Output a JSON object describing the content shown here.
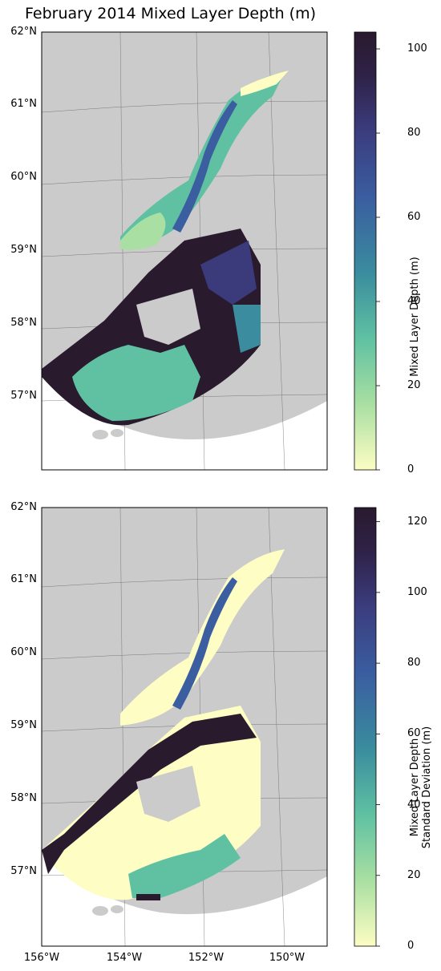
{
  "figure": {
    "title": "February 2014 Mixed Layer Depth (m)"
  },
  "lat_labels": [
    "62°N",
    "61°N",
    "60°N",
    "59°N",
    "58°N",
    "57°N"
  ],
  "lon_labels": [
    "156°W",
    "154°W",
    "152°W",
    "150°W"
  ],
  "panels": [
    {
      "colorbar": {
        "label_lines": [
          "Mixed Layer Depth (m)"
        ],
        "range": [
          0,
          104
        ],
        "ticks": [
          "0",
          "20",
          "40",
          "60",
          "80",
          "100"
        ],
        "tick_values": [
          0,
          20,
          40,
          60,
          80,
          100
        ]
      }
    },
    {
      "colorbar": {
        "label_lines": [
          "Mixed Layer Depth",
          "Standard Deviation (m)"
        ],
        "range": [
          0,
          124
        ],
        "ticks": [
          "0",
          "20",
          "40",
          "60",
          "80",
          "100",
          "120"
        ],
        "tick_values": [
          0,
          20,
          40,
          60,
          80,
          100,
          120
        ]
      }
    }
  ],
  "colors": {
    "land": "#cbcbcb",
    "colormap": [
      "#fdfdc4",
      "#a9dfa2",
      "#5fc1a2",
      "#3a8c9e",
      "#3a5ea0",
      "#3b3b7c",
      "#2e2247",
      "#2a1a2e"
    ]
  }
}
